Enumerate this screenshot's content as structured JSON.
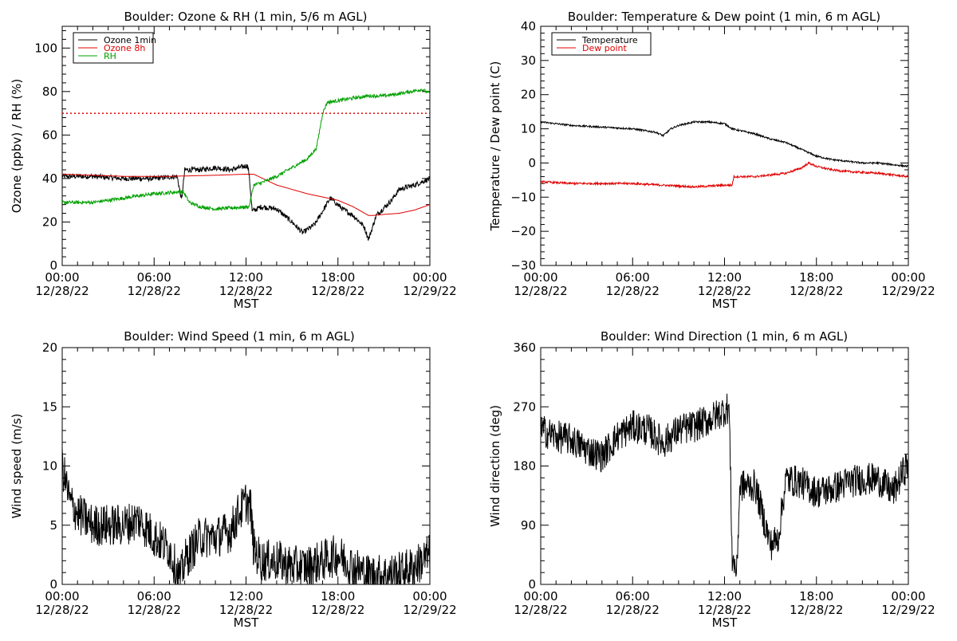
{
  "chart_data": [
    {
      "type": "line",
      "title": "Boulder: Ozone & RH (1 min, 5/6 m AGL)",
      "ylabel": "Ozone (ppbv) / RH (%)",
      "xlabel": "MST",
      "ylim": [
        0,
        110
      ],
      "yticks": [
        "0",
        "20",
        "40",
        "60",
        "80",
        "100"
      ],
      "yticks_values": [
        0,
        20,
        40,
        60,
        80,
        100
      ],
      "xticks": [
        [
          "00:00",
          "12/28/22"
        ],
        [
          "06:00",
          "12/28/22"
        ],
        [
          "12:00",
          "12/28/22"
        ],
        [
          "18:00",
          "12/28/22"
        ],
        [
          "00:00",
          "12/29/22"
        ]
      ],
      "xlim_hours": [
        0,
        24
      ],
      "legend": {
        "placement": "top-left",
        "items": [
          {
            "name": "Ozone 1min",
            "color": "#000000"
          },
          {
            "name": "Ozone 8h",
            "color": "#e00000"
          },
          {
            "name": "RH",
            "color": "#00a000"
          }
        ]
      },
      "reference_lines": [
        {
          "y": 70,
          "color": "#e00000",
          "style": "dotted"
        }
      ],
      "series": [
        {
          "name": "Ozone 1min",
          "color": "#000000",
          "noise": 1.2,
          "x": [
            0,
            2,
            4,
            6,
            7.5,
            7.8,
            8,
            9,
            10,
            11,
            12.1,
            12.2,
            12.4,
            13,
            14,
            15,
            15.7,
            16.5,
            17.5,
            18.3,
            19,
            19.7,
            20,
            20.5,
            21.5,
            22,
            23,
            24
          ],
          "y": [
            41,
            41,
            40,
            40,
            41,
            30,
            44,
            44,
            45,
            44,
            46,
            42,
            25,
            27,
            26,
            20,
            15,
            19,
            31,
            26,
            23,
            18,
            12,
            23,
            30,
            35,
            37,
            40
          ]
        },
        {
          "name": "Ozone 8h",
          "color": "#e00000",
          "noise": 0,
          "x": [
            0,
            4,
            7,
            10,
            12,
            12.5,
            14,
            16,
            18,
            19,
            20,
            20.3,
            21,
            22,
            23,
            24
          ],
          "y": [
            42,
            41,
            41,
            41.5,
            42,
            42,
            37,
            33,
            30,
            27,
            23,
            23,
            23.5,
            24,
            25.5,
            28
          ]
        },
        {
          "name": "RH",
          "color": "#00a000",
          "noise": 0.8,
          "x": [
            0,
            2,
            4,
            6,
            7.9,
            8.3,
            9,
            10,
            12.2,
            12.5,
            13,
            14,
            15,
            16,
            16.6,
            17,
            17.3,
            19,
            20,
            21,
            22,
            23.5,
            24
          ],
          "y": [
            29,
            29,
            31,
            33,
            34,
            29,
            27,
            26,
            27,
            37,
            38,
            41,
            45,
            49,
            54,
            70,
            75,
            77,
            78,
            78,
            79,
            81,
            79
          ]
        }
      ]
    },
    {
      "type": "line",
      "title": "Boulder: Temperature & Dew point (1 min, 6 m AGL)",
      "ylabel": "Temperature / Dew point (C)",
      "xlabel": "MST",
      "ylim": [
        -30,
        40
      ],
      "yticks": [
        "−30",
        "−20",
        "−10",
        "0",
        "10",
        "20",
        "30",
        "40"
      ],
      "yticks_values": [
        -30,
        -20,
        -10,
        0,
        10,
        20,
        30,
        40
      ],
      "xticks": [
        [
          "00:00",
          "12/28/22"
        ],
        [
          "06:00",
          "12/28/22"
        ],
        [
          "12:00",
          "12/28/22"
        ],
        [
          "18:00",
          "12/28/22"
        ],
        [
          "00:00",
          "12/29/22"
        ]
      ],
      "xlim_hours": [
        0,
        24
      ],
      "legend": {
        "placement": "top-left",
        "items": [
          {
            "name": "Temperature",
            "color": "#000000"
          },
          {
            "name": "Dew point",
            "color": "#e00000"
          }
        ]
      },
      "series": [
        {
          "name": "Temperature",
          "color": "#000000",
          "noise": 0.25,
          "x": [
            0,
            2,
            4,
            6,
            7.5,
            8,
            8.5,
            9,
            10,
            11,
            12,
            12.5,
            13,
            14,
            15,
            16,
            17,
            18,
            19,
            20,
            21,
            22,
            23,
            24
          ],
          "y": [
            12,
            11,
            10.5,
            10,
            9,
            8,
            10,
            11,
            12,
            12,
            11.5,
            10,
            9.5,
            8.5,
            7,
            6,
            4,
            2,
            1,
            0.5,
            0,
            0,
            -0.5,
            -1
          ]
        },
        {
          "name": "Dew point",
          "color": "#e00000",
          "noise": 0.3,
          "x": [
            0,
            2,
            4,
            6,
            8,
            10,
            12,
            12.5,
            12.6,
            14,
            15,
            16,
            17,
            17.5,
            18,
            19,
            20,
            22,
            24
          ],
          "y": [
            -5.5,
            -6,
            -6,
            -6,
            -6.5,
            -7,
            -6.5,
            -6.5,
            -4,
            -4,
            -3.5,
            -3,
            -1.5,
            0,
            -1,
            -2,
            -2.5,
            -3,
            -4
          ]
        }
      ]
    },
    {
      "type": "line",
      "title": "Boulder: Wind Speed (1 min, 6 m AGL)",
      "ylabel": "Wind speed (m/s)",
      "xlabel": "MST",
      "ylim": [
        0,
        20
      ],
      "yticks": [
        "0",
        "5",
        "10",
        "15",
        "20"
      ],
      "yticks_values": [
        0,
        5,
        10,
        15,
        20
      ],
      "xticks": [
        [
          "00:00",
          "12/28/22"
        ],
        [
          "06:00",
          "12/28/22"
        ],
        [
          "12:00",
          "12/28/22"
        ],
        [
          "18:00",
          "12/28/22"
        ],
        [
          "00:00",
          "12/29/22"
        ]
      ],
      "xlim_hours": [
        0,
        24
      ],
      "series": [
        {
          "name": "",
          "color": "#000000",
          "noise": 1.8,
          "x": [
            0,
            0.5,
            1,
            2,
            3,
            4,
            5,
            6,
            7,
            7.5,
            7.7,
            8,
            9,
            10,
            11,
            11.5,
            12,
            12.3,
            12.5,
            13,
            14,
            15,
            16,
            17,
            18,
            19,
            20,
            21,
            22,
            23,
            24
          ],
          "y": [
            10,
            7,
            6,
            5,
            5,
            5,
            5.5,
            4,
            3,
            1,
            0.5,
            2,
            4,
            4,
            4.5,
            6,
            7,
            6.5,
            3,
            2,
            2,
            1.5,
            1.5,
            2,
            2.5,
            1.5,
            0.8,
            0.8,
            1,
            1.5,
            2.5
          ]
        }
      ]
    },
    {
      "type": "line",
      "title": "Boulder: Wind Direction (1 min, 6 m AGL)",
      "ylabel": "Wind direction (deg)",
      "xlabel": "MST",
      "ylim": [
        0,
        360
      ],
      "yticks": [
        "0",
        "90",
        "180",
        "270",
        "360"
      ],
      "yticks_values": [
        0,
        90,
        180,
        270,
        360
      ],
      "xticks": [
        [
          "00:00",
          "12/28/22"
        ],
        [
          "06:00",
          "12/28/22"
        ],
        [
          "12:00",
          "12/28/22"
        ],
        [
          "18:00",
          "12/28/22"
        ],
        [
          "00:00",
          "12/29/22"
        ]
      ],
      "xlim_hours": [
        0,
        24
      ],
      "series": [
        {
          "name": "",
          "color": "#000000",
          "noise": 25,
          "x": [
            0,
            1,
            2,
            3,
            4,
            5,
            6,
            7,
            8,
            9,
            10,
            11,
            12,
            12.3,
            12.5,
            12.8,
            13,
            14,
            15,
            15.5,
            16,
            17,
            18,
            19,
            20,
            21,
            22,
            23,
            24
          ],
          "y": [
            235,
            225,
            220,
            205,
            195,
            225,
            240,
            235,
            215,
            235,
            240,
            250,
            265,
            270,
            40,
            20,
            150,
            150,
            60,
            70,
            160,
            155,
            140,
            145,
            155,
            160,
            160,
            140,
            185
          ]
        }
      ]
    }
  ]
}
